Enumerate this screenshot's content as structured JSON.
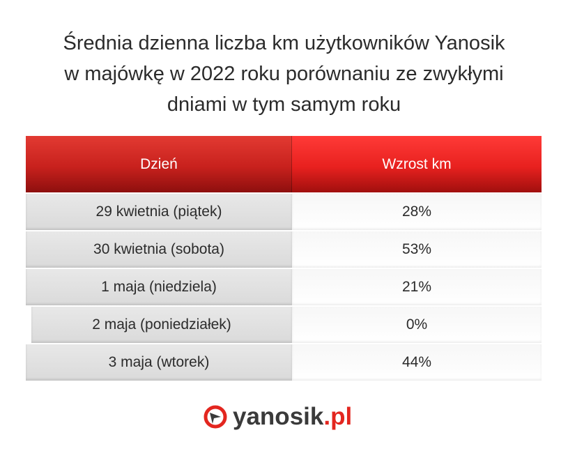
{
  "title_lines": [
    "Średnia dzienna liczba km użytkowników Yanosik",
    "w majówkę w 2022 roku porównaniu ze zwykłymi",
    "dniami w tym samym roku"
  ],
  "table": {
    "headers": [
      "Dzień",
      "Wzrost km"
    ],
    "rows": [
      [
        "29 kwietnia (piątek)",
        "28%"
      ],
      [
        "30 kwietnia (sobota)",
        "53%"
      ],
      [
        "1 maja (niedziela)",
        "21%"
      ],
      [
        "2 maja (poniedziałek)",
        "0%"
      ],
      [
        "3 maja (wtorek)",
        "44%"
      ]
    ]
  },
  "logo": {
    "name": "yanosik",
    "suffix": ".pl",
    "icon": "yanosik-logo-icon"
  },
  "colors": {
    "header_red": "#d42a25",
    "brand_red": "#e3261f"
  }
}
